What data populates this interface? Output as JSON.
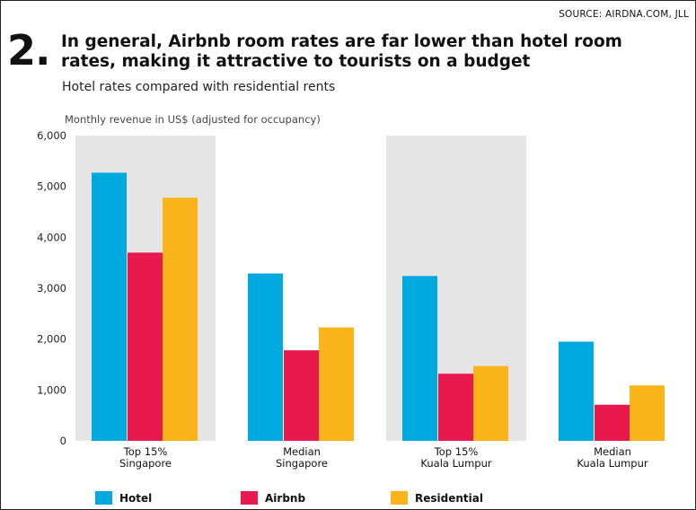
{
  "source": "SOURCE: AIRDNA.COM, JLL",
  "number": "2.",
  "headline_line1": "In general, Airbnb room rates are far lower than hotel room",
  "headline_line2": "rates, making it attractive to tourists on a budget",
  "subtitle": "Hotel rates compared with residential rents",
  "chart_data": {
    "type": "bar",
    "ylabel": "Monthly revenue in US$ (adjusted for occupancy)",
    "ylim": [
      0,
      6000
    ],
    "yticks": [
      "0",
      "1,000",
      "2,000",
      "3,000",
      "4,000",
      "5,000",
      "6,000"
    ],
    "categories": [
      {
        "line1": "Top 15%",
        "line2": "Singapore",
        "shaded": true
      },
      {
        "line1": "Median",
        "line2": "Singapore",
        "shaded": false
      },
      {
        "line1": "Top 15%",
        "line2": "Kuala Lumpur",
        "shaded": true
      },
      {
        "line1": "Median",
        "line2": "Kuala Lumpur",
        "shaded": false
      }
    ],
    "series": [
      {
        "name": "Hotel",
        "color": "#00a9e0",
        "values": [
          5270,
          3290,
          3240,
          1950
        ]
      },
      {
        "name": "Airbnb",
        "color": "#e8194f",
        "values": [
          3700,
          1780,
          1320,
          710
        ]
      },
      {
        "name": "Residential",
        "color": "#fbb51b",
        "values": [
          4780,
          2230,
          1470,
          1090
        ]
      }
    ],
    "legend_position": "bottom",
    "grid": false
  }
}
